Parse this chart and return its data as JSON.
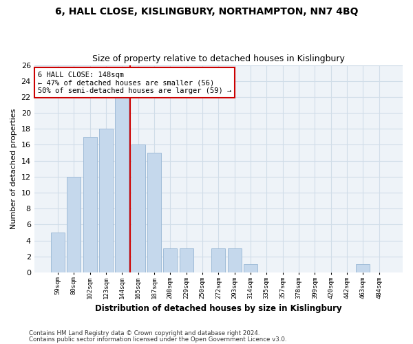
{
  "title": "6, HALL CLOSE, KISLINGBURY, NORTHAMPTON, NN7 4BQ",
  "subtitle": "Size of property relative to detached houses in Kislingbury",
  "xlabel": "Distribution of detached houses by size in Kislingbury",
  "ylabel": "Number of detached properties",
  "categories": [
    "59sqm",
    "80sqm",
    "102sqm",
    "123sqm",
    "144sqm",
    "165sqm",
    "187sqm",
    "208sqm",
    "229sqm",
    "250sqm",
    "272sqm",
    "293sqm",
    "314sqm",
    "335sqm",
    "357sqm",
    "378sqm",
    "399sqm",
    "420sqm",
    "442sqm",
    "463sqm",
    "484sqm"
  ],
  "values": [
    5,
    12,
    17,
    18,
    22,
    16,
    15,
    3,
    3,
    0,
    3,
    3,
    1,
    0,
    0,
    0,
    0,
    0,
    0,
    1,
    0
  ],
  "bar_color": "#c5d8ec",
  "bar_edge_color": "#a0bcd8",
  "grid_color": "#d0dde8",
  "fig_background": "#ffffff",
  "axes_background": "#eef3f8",
  "red_line_x": 4.5,
  "annotation_text": "6 HALL CLOSE: 148sqm\n← 47% of detached houses are smaller (56)\n50% of semi-detached houses are larger (59) →",
  "annotation_box_color": "white",
  "annotation_box_edge": "#cc0000",
  "ylim": [
    0,
    26
  ],
  "yticks": [
    0,
    2,
    4,
    6,
    8,
    10,
    12,
    14,
    16,
    18,
    20,
    22,
    24,
    26
  ],
  "footnote1": "Contains HM Land Registry data © Crown copyright and database right 2024.",
  "footnote2": "Contains public sector information licensed under the Open Government Licence v3.0."
}
